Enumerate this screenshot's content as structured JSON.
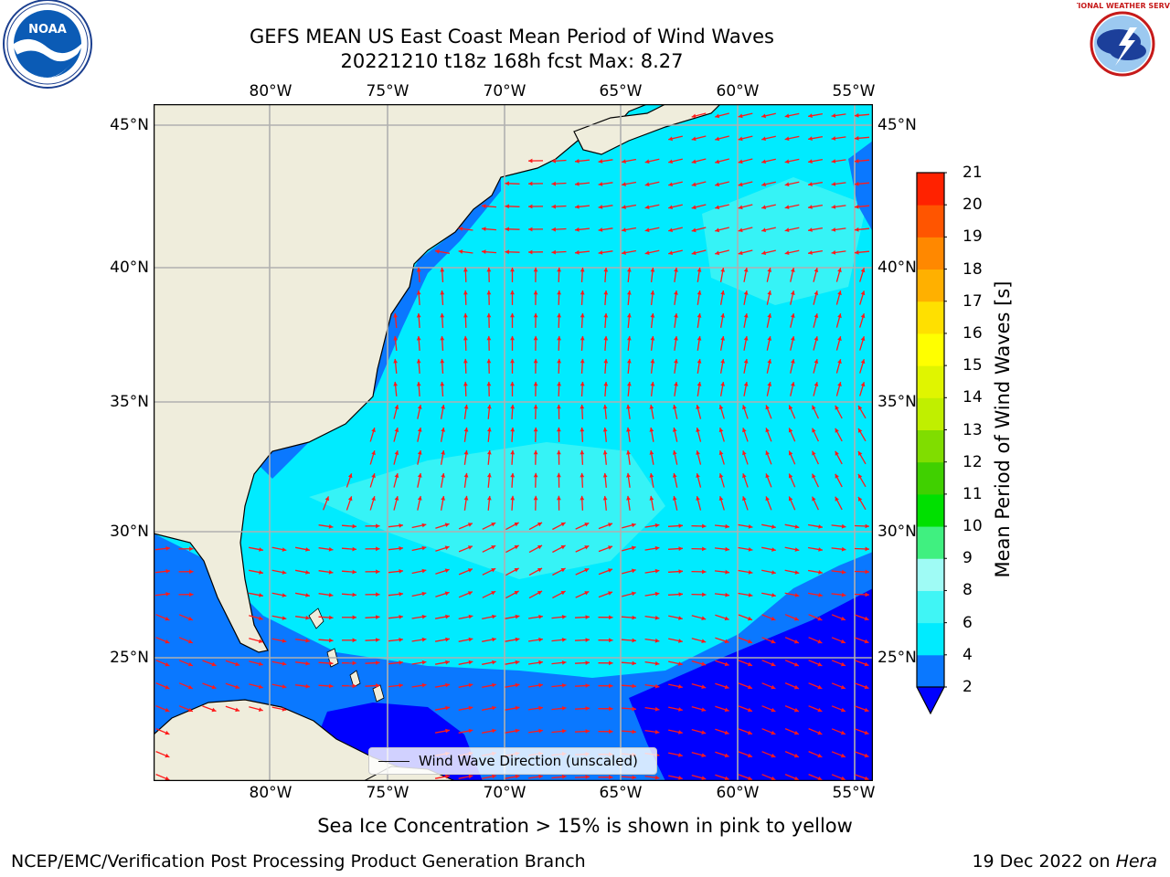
{
  "title": {
    "line1": "GEFS MEAN US East Coast Mean Period of Wind Waves",
    "line2": "20221210 t18z 168h fcst   Max: 8.27"
  },
  "map": {
    "lon_ticks": [
      "80°W",
      "75°W",
      "70°W",
      "65°W",
      "60°W",
      "55°W"
    ],
    "lat_ticks": [
      "45°N",
      "40°N",
      "35°N",
      "30°N",
      "25°N"
    ],
    "legend_label": "Wind Wave Direction (unscaled)",
    "arrow_color": "#ff1a1a",
    "land_color": "#efeddc",
    "grid_color": "#b0b0b0",
    "extent": {
      "lon": [
        -85,
        -54.2
      ],
      "lat": [
        20.5,
        46
      ]
    }
  },
  "colorbar": {
    "label": "Mean Period of Wind Waves [s]",
    "ticks": [
      "2",
      "4",
      "6",
      "8",
      "9",
      "10",
      "11",
      "12",
      "13",
      "14",
      "15",
      "16",
      "17",
      "18",
      "19",
      "20",
      "21"
    ],
    "colors": [
      "#0a78ff",
      "#00ebff",
      "#40f5f5",
      "#9ffbf5",
      "#40f080",
      "#00e000",
      "#40d000",
      "#80dd00",
      "#c0ef00",
      "#e0f500",
      "#ffff00",
      "#ffe000",
      "#ffb000",
      "#ff8800",
      "#ff5500",
      "#ff2200"
    ],
    "under_color": "#0000ff"
  },
  "field_colors": {
    "p2_4": "#0a78ff",
    "p4_6": "#00ebff",
    "p6_8": "#40f5f5",
    "under": "#0000ff"
  },
  "notes": {
    "sea_ice": "Sea Ice Concentration > 15% is shown in pink to yellow",
    "branch": "NCEP/EMC/Verification Post Processing Product Generation Branch",
    "date": "19 Dec 2022 on ",
    "host": "Hera"
  },
  "logos": {
    "noaa": "NOAA",
    "nws": "NATIONAL WEATHER SERVICE"
  }
}
